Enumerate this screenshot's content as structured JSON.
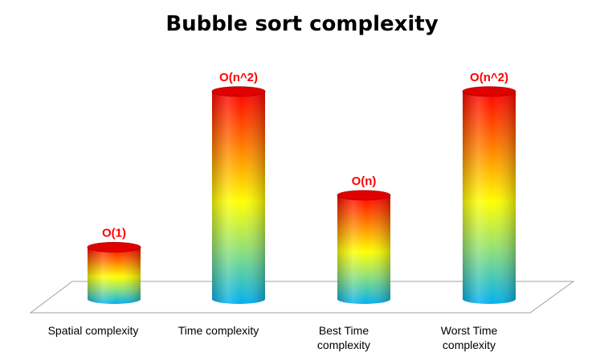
{
  "chart_data": {
    "type": "bar",
    "title": "Bubble sort complexity",
    "categories": [
      [
        "Spatial  complexity"
      ],
      [
        "Time  complexity"
      ],
      [
        "Best Time",
        "complexity"
      ],
      [
        "Worst Time",
        "complexity"
      ]
    ],
    "values": [
      1,
      4,
      2,
      4
    ],
    "data_labels": [
      "O(1)",
      "O(n^2)",
      "O(n)",
      "O(n^2)"
    ],
    "ylim": [
      0,
      4.4
    ],
    "grid": false,
    "legend": "none",
    "style": "3d-cylinder",
    "colors": {
      "gradient_top": "#ff0000",
      "gradient_mid": "#ffff00",
      "gradient_bottom": "#00b0f0",
      "label": "#ff0000",
      "floor_edge": "#a0a0a0"
    }
  }
}
